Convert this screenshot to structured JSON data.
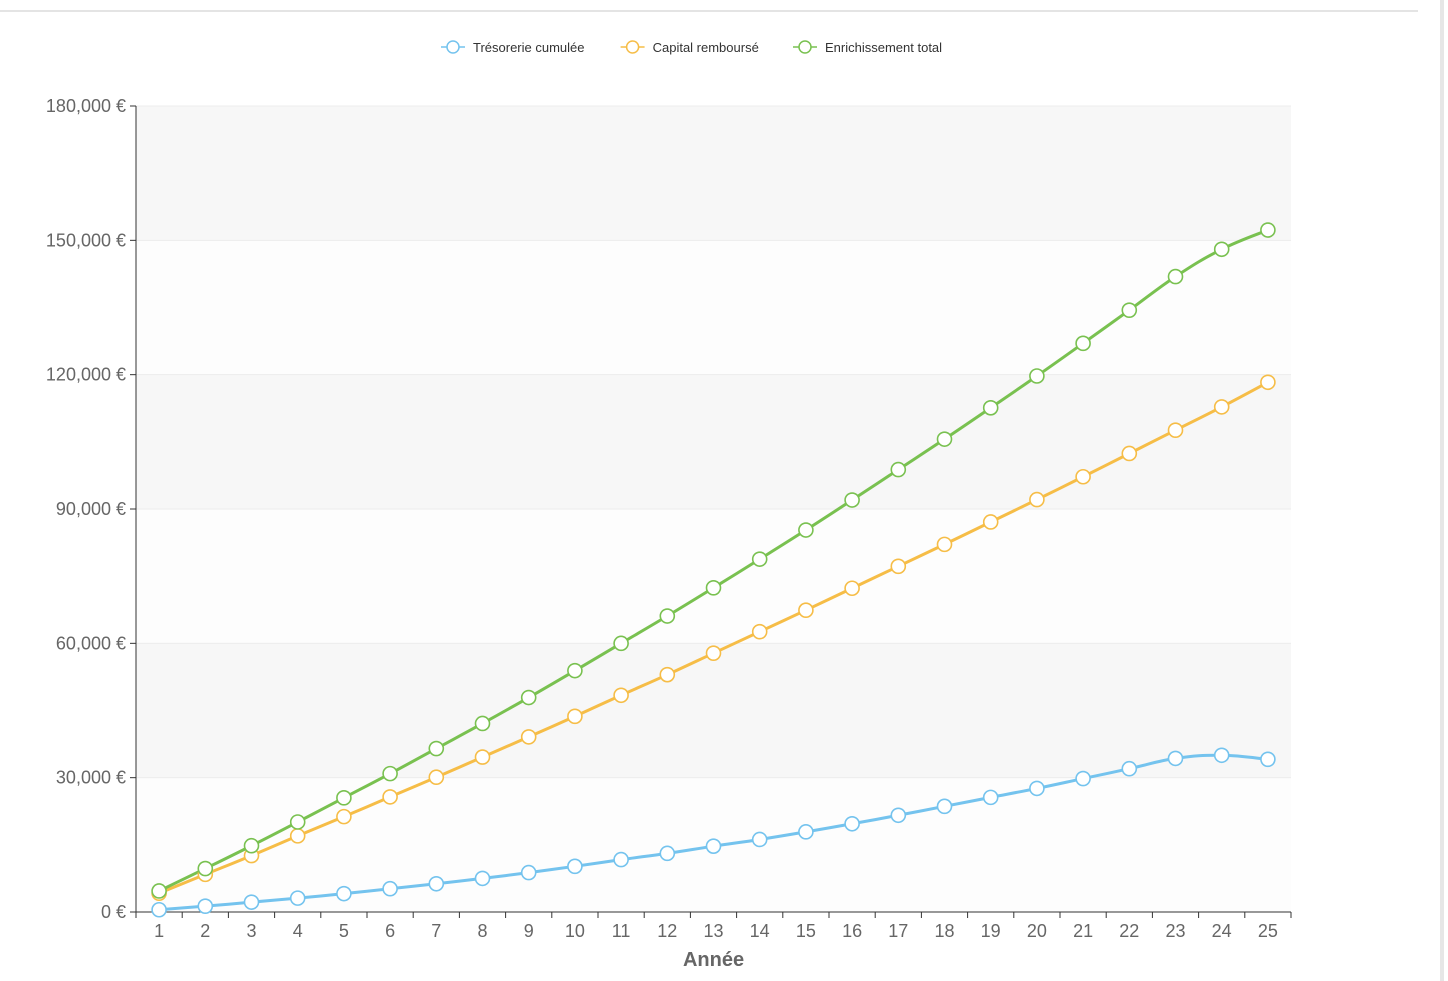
{
  "chart_data": {
    "type": "line",
    "title": "",
    "xlabel": "Année",
    "ylabel": "",
    "categories": [
      "1",
      "2",
      "3",
      "4",
      "5",
      "6",
      "7",
      "8",
      "9",
      "10",
      "11",
      "12",
      "13",
      "14",
      "15",
      "16",
      "17",
      "18",
      "19",
      "20",
      "21",
      "22",
      "23",
      "24",
      "25"
    ],
    "ylim": [
      0,
      180000
    ],
    "y_ticks": [
      0,
      30000,
      60000,
      90000,
      120000,
      150000,
      180000
    ],
    "y_tick_labels": [
      "0 €",
      "30,000 €",
      "60,000 €",
      "90,000 €",
      "120,000 €",
      "150,000 €",
      "180,000 €"
    ],
    "grid": "horizontal bands",
    "legend_position": "top-center",
    "series": [
      {
        "name": "Trésorerie cumulée",
        "color": "#74c3ee",
        "values": [
          500,
          1300,
          2200,
          3100,
          4100,
          5200,
          6300,
          7500,
          8800,
          10200,
          11700,
          13100,
          14700,
          16200,
          17900,
          19700,
          21600,
          23600,
          25600,
          27600,
          29800,
          32000,
          34300,
          35000,
          34100
        ]
      },
      {
        "name": "Capital remboursé",
        "color": "#f6bd47",
        "values": [
          4200,
          8400,
          12600,
          17000,
          21300,
          25700,
          30100,
          34600,
          39100,
          43700,
          48400,
          53000,
          57800,
          62600,
          67400,
          72300,
          77200,
          82100,
          87100,
          92100,
          97200,
          102400,
          107600,
          112800,
          118300
        ]
      },
      {
        "name": "Enrichissement total",
        "color": "#79c150",
        "values": [
          4700,
          9700,
          14800,
          20100,
          25500,
          30900,
          36500,
          42100,
          47900,
          53900,
          60000,
          66100,
          72400,
          78800,
          85300,
          92000,
          98800,
          105600,
          112600,
          119700,
          127000,
          134400,
          141900,
          148000,
          152300
        ]
      }
    ]
  }
}
